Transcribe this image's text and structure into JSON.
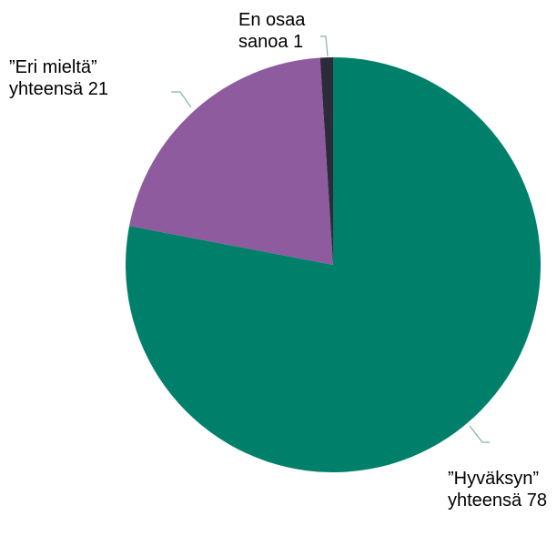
{
  "chart_data": {
    "type": "pie",
    "categories": [
      "Hyväksyn",
      "Eri mieltä",
      "En osaa sanoa"
    ],
    "values": [
      78,
      21,
      1
    ],
    "value_labels": [
      "”Hyväksyn” yhteensä 78",
      "”Eri mieltä” yhteensä 21",
      "En osaa sanoa 1"
    ],
    "colors": [
      "#00806b",
      "#8e5b9e",
      "#2b2b3a"
    ]
  }
}
